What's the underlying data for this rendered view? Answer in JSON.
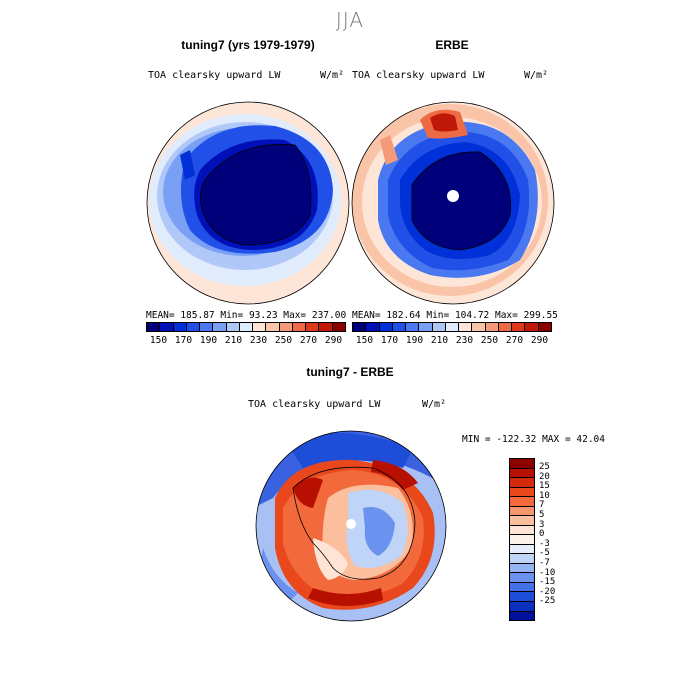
{
  "figure_title": "JJA",
  "panels": {
    "left": {
      "title": "tuning7 (yrs 1979-1979)",
      "variable": "TOA clearsky upward LW",
      "units": "W/m²",
      "stats": "MEAN= 185.87  Min=  93.23  Max= 237.00"
    },
    "right": {
      "title": "ERBE",
      "variable": "TOA clearsky upward LW",
      "units": "W/m²",
      "stats": "MEAN= 182.64  Min= 104.72  Max= 299.55"
    },
    "diff": {
      "title": "tuning7 - ERBE",
      "variable": "TOA clearsky upward LW",
      "units": "W/m²",
      "stats": "MIN = -122.32 MAX =  42.04"
    }
  },
  "abs_colorbar": {
    "colors": [
      "#00007a",
      "#0010b8",
      "#0030d8",
      "#2050e8",
      "#4a78f0",
      "#7aa0f5",
      "#b0c8f8",
      "#e0ecfc",
      "#fde6d8",
      "#f9c4a8",
      "#f59a78",
      "#ee6a44",
      "#dd3a1c",
      "#c01808",
      "#8c0000"
    ],
    "tick_labels": [
      "150",
      "170",
      "190",
      "210",
      "230",
      "250",
      "270",
      "290"
    ]
  },
  "diff_colorbar": {
    "colors": [
      "#8c0000",
      "#b81000",
      "#d42a0c",
      "#e8481c",
      "#f26a3c",
      "#f7956c",
      "#fbbf9e",
      "#fde4d4",
      "#fdf2ea",
      "#e6eefc",
      "#c0d4f8",
      "#94b4f3",
      "#6a92ee",
      "#4270e6",
      "#1e4ed8",
      "#0a30c0",
      "#00109a"
    ],
    "tick_labels": [
      "25",
      "20",
      "15",
      "10",
      "7",
      "5",
      "3",
      "0",
      "-3",
      "-5",
      "-7",
      "-10",
      "-15",
      "-20",
      "-25"
    ]
  },
  "map_colors": {
    "outer_ring": "#fde6d8",
    "light_blue": "#b0c8f8",
    "mid_blue": "#4a78f0",
    "bright_blue": "#1f3fe0",
    "deep_blue": "#00007a",
    "diff_blue": "#3a62e0",
    "diff_lightblue": "#a8c0f4",
    "diff_red": "#e8481c",
    "diff_darkred": "#b81000"
  }
}
